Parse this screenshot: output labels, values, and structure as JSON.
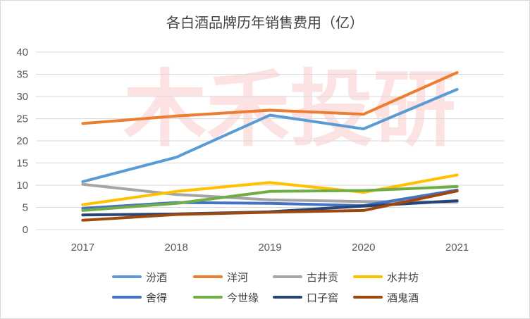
{
  "chart_data": {
    "type": "line",
    "title": "各白酒品牌历年销售费用（亿）",
    "xlabel": "",
    "ylabel": "",
    "x": [
      "2017",
      "2018",
      "2019",
      "2020",
      "2021"
    ],
    "ylim": [
      0,
      40
    ],
    "yticks": [
      "0",
      "5",
      "10",
      "15",
      "20",
      "25",
      "30",
      "35",
      "40"
    ],
    "grid": true,
    "legend_position": "bottom",
    "watermark": "木禾投研",
    "series": [
      {
        "name": "汾酒",
        "color": "#5B9BD5",
        "values": [
          10.8,
          16.3,
          25.8,
          22.7,
          31.6
        ]
      },
      {
        "name": "洋河",
        "color": "#ED7D31",
        "values": [
          23.9,
          25.6,
          26.9,
          26.0,
          35.4
        ]
      },
      {
        "name": "古井贡",
        "color": "#A5A5A5",
        "values": [
          10.2,
          7.9,
          6.7,
          6.3,
          6.2
        ]
      },
      {
        "name": "水井坊",
        "color": "#FFC000",
        "values": [
          5.6,
          8.6,
          10.6,
          8.4,
          12.3
        ]
      },
      {
        "name": "舍得",
        "color": "#4472C4",
        "values": [
          4.8,
          6.1,
          5.9,
          5.4,
          8.9
        ]
      },
      {
        "name": "今世缘",
        "color": "#70AD47",
        "values": [
          4.3,
          5.9,
          8.6,
          8.8,
          9.7
        ]
      },
      {
        "name": "口子窖",
        "color": "#264478",
        "values": [
          3.3,
          3.5,
          4.0,
          5.3,
          6.5
        ]
      },
      {
        "name": "酒鬼酒",
        "color": "#9E480E",
        "values": [
          2.1,
          3.4,
          3.9,
          4.3,
          8.7
        ]
      }
    ]
  }
}
